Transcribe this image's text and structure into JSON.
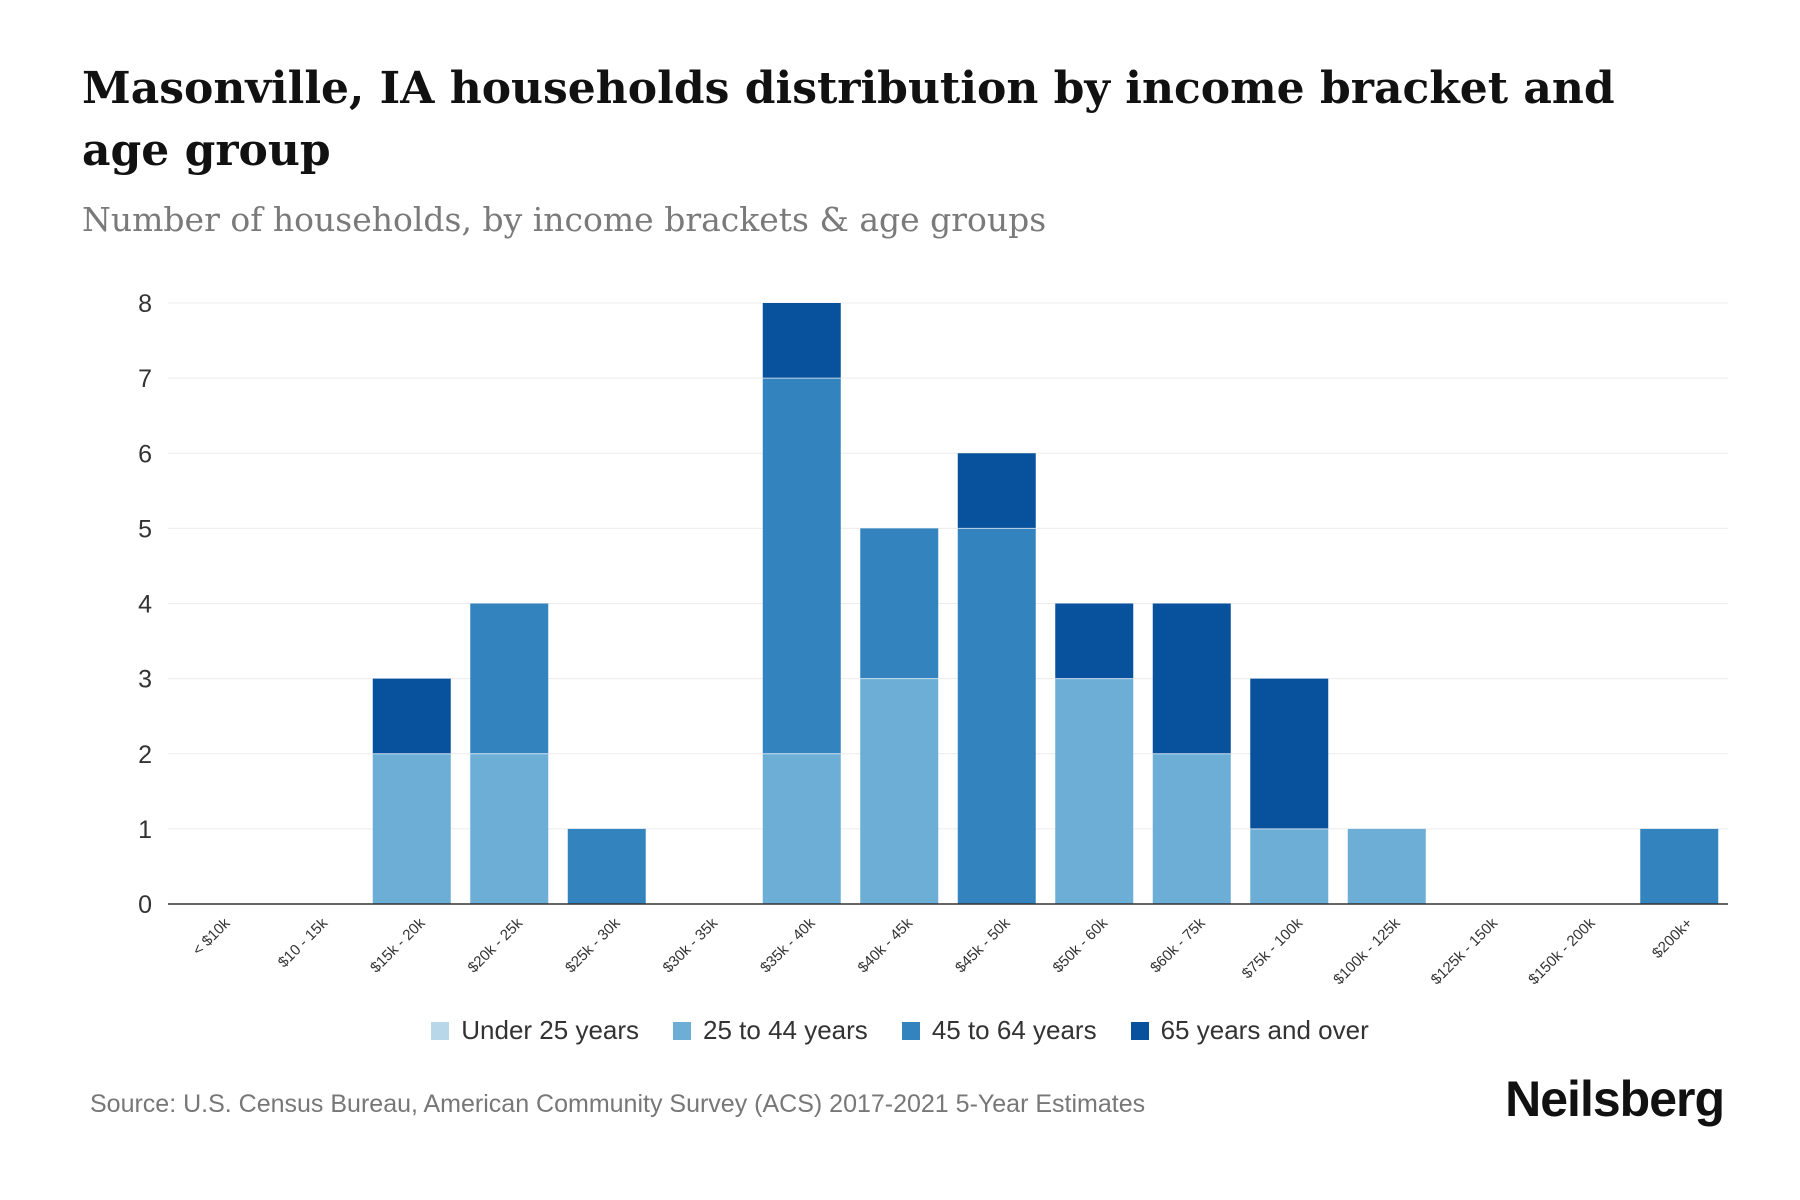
{
  "title": "Masonville, IA households distribution by income bracket and age group",
  "subtitle": "Number of households, by income brackets & age groups",
  "source": "Source: U.S. Census Bureau, American Community Survey (ACS) 2017-2021 5-Year Estimates",
  "brand": "Neilsberg",
  "chart_data": {
    "type": "bar",
    "stacked": true,
    "title": "Masonville, IA households distribution by income bracket and age group",
    "subtitle": "Number of households, by income brackets & age groups",
    "xlabel": "",
    "ylabel": "",
    "ylim": [
      0,
      8
    ],
    "yticks": [
      0,
      1,
      2,
      3,
      4,
      5,
      6,
      7,
      8
    ],
    "grid": true,
    "legend_position": "bottom",
    "categories": [
      "< $10k",
      "$10 - 15k",
      "$15k - 20k",
      "$20k - 25k",
      "$25k - 30k",
      "$30k - 35k",
      "$35k - 40k",
      "$40k - 45k",
      "$45k - 50k",
      "$50k - 60k",
      "$60k - 75k",
      "$75k - 100k",
      "$100k - 125k",
      "$125k - 150k",
      "$150k - 200k",
      "$200k+"
    ],
    "series": [
      {
        "name": "Under 25 years",
        "color": "#b8d8ea",
        "values": [
          0,
          0,
          0,
          0,
          0,
          0,
          0,
          0,
          0,
          0,
          0,
          0,
          0,
          0,
          0,
          0
        ]
      },
      {
        "name": "25 to 44 years",
        "color": "#6caed6",
        "values": [
          0,
          0,
          2,
          2,
          0,
          0,
          2,
          3,
          0,
          3,
          2,
          1,
          1,
          0,
          0,
          0
        ]
      },
      {
        "name": "45 to 64 years",
        "color": "#3383be",
        "values": [
          0,
          0,
          0,
          2,
          1,
          0,
          5,
          2,
          5,
          0,
          0,
          0,
          0,
          0,
          0,
          1
        ]
      },
      {
        "name": "65 years and over",
        "color": "#08519c",
        "values": [
          0,
          0,
          1,
          0,
          0,
          0,
          1,
          0,
          1,
          1,
          2,
          2,
          0,
          0,
          0,
          0
        ]
      }
    ]
  }
}
